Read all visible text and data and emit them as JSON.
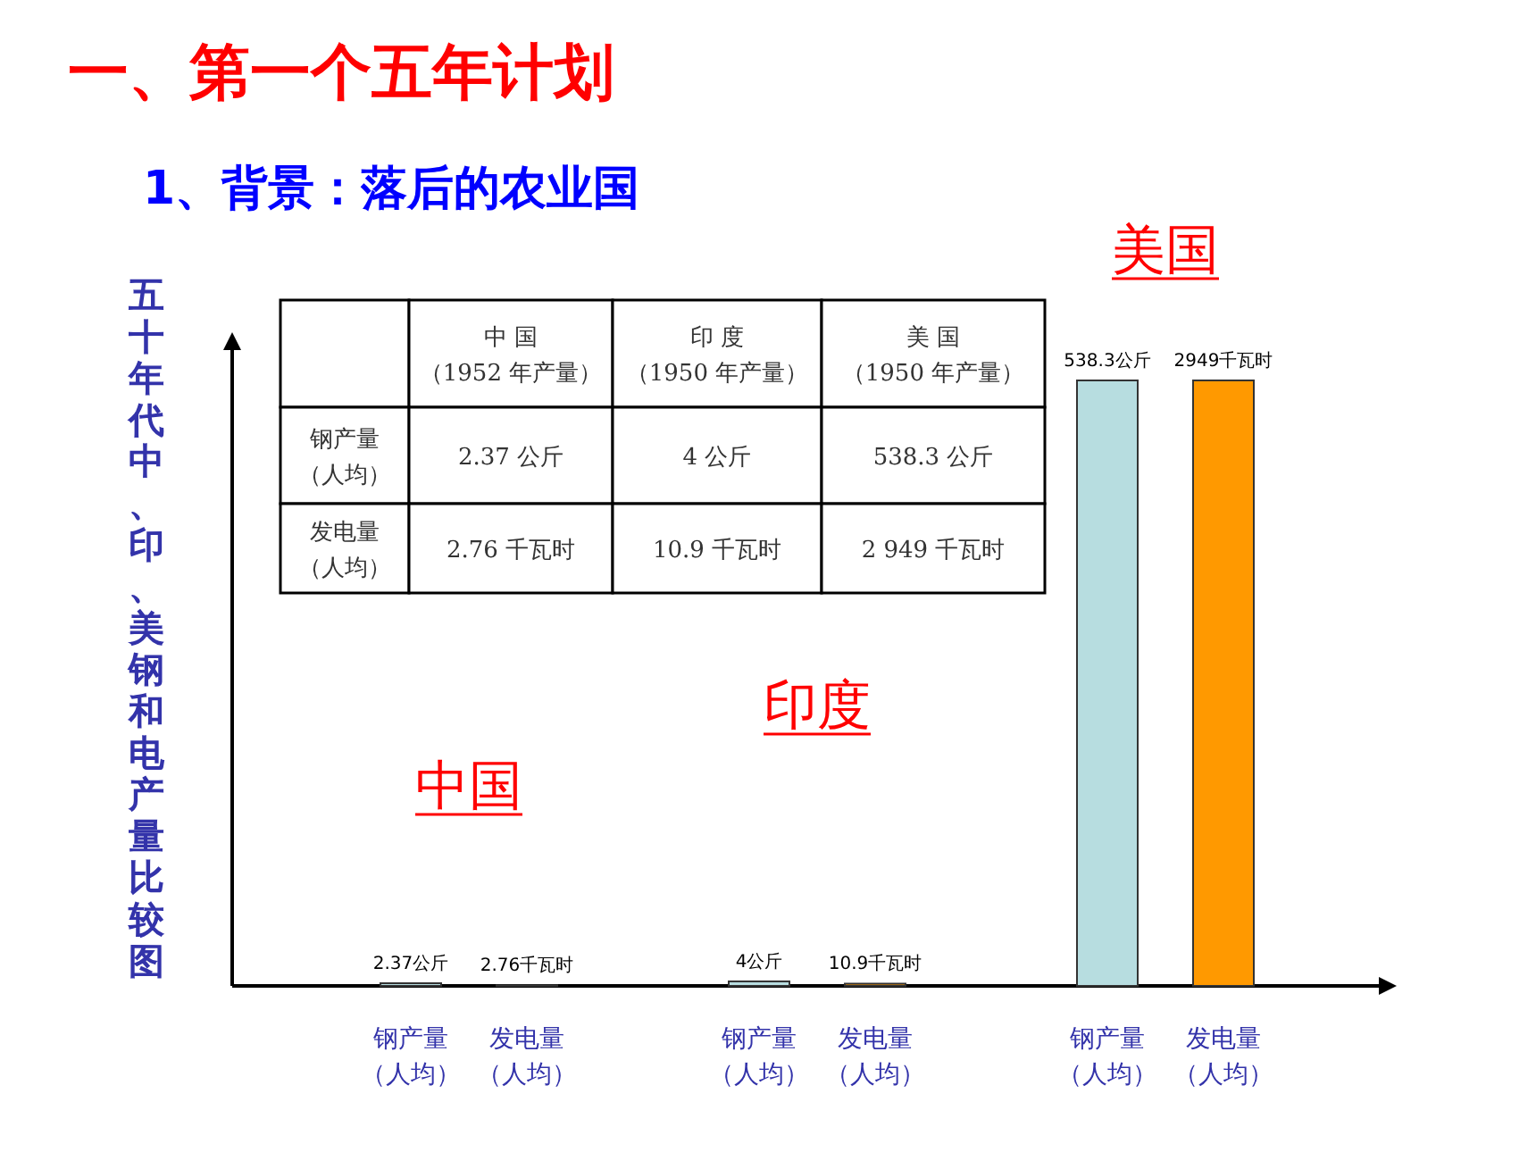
{
  "chart_data": {
    "type": "bar",
    "title": "一、第一个五年计划",
    "subtitle": "1、背景：落后的农业国",
    "ylabel": "五十年代中、印、美钢和电产量比较图",
    "tick_labels": false,
    "categories": [
      "钢产量（人均）",
      "发电量（人均）",
      null,
      "钢产量（人均）",
      "发电量（人均）",
      null,
      "钢产量（人均）",
      "发电量（人均）"
    ],
    "series": [
      {
        "color": "#b7dde0",
        "values": [
          2.37,
          null,
          null,
          4,
          null,
          null,
          538.3,
          null
        ],
        "value_labels": [
          "2.37公斤",
          null,
          null,
          "4公斤",
          null,
          null,
          "538.3公斤",
          null
        ]
      },
      {
        "color": "#ff9900",
        "axis": "y2",
        "values": [
          null,
          2.76,
          null,
          null,
          10.9,
          null,
          null,
          2949
        ],
        "value_labels": [
          null,
          "2.76千瓦时",
          null,
          null,
          "10.9千瓦时",
          null,
          null,
          "2949千瓦时"
        ]
      }
    ],
    "annotations": [
      "中国",
      "印度",
      "美国",
      "中 国（1952 年产量）",
      "印 度（1950 年产量）",
      "美 国（1950 年产量）",
      "钢产量（人均）",
      "2.37 公斤",
      "4 公斤",
      "538.3 公斤",
      "发电量（人均）",
      "2.76 千瓦时",
      "10.9 千瓦时",
      "2 949 千瓦时"
    ]
  }
}
